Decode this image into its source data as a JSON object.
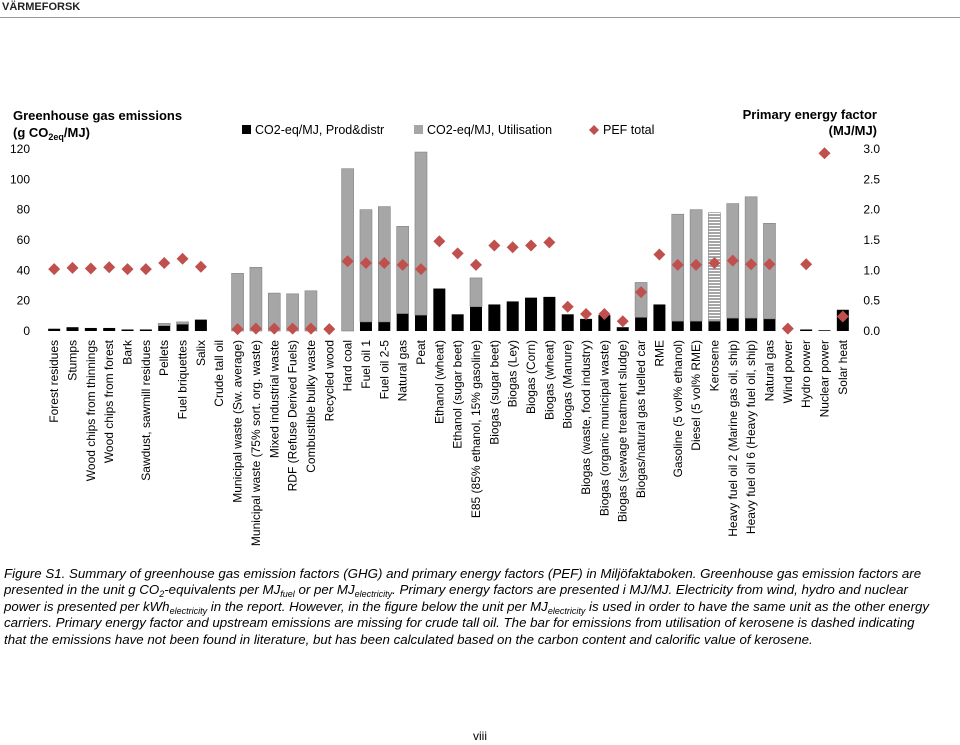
{
  "header": "VÄRMEFORSK",
  "chart_data": {
    "type": "bar",
    "y_label": "Greenhouse gas emissions",
    "y_unit": [
      {
        "t": "(g CO"
      },
      {
        "sub": "2eq"
      },
      {
        "t": "/MJ)"
      }
    ],
    "y2_label": "Primary energy factor",
    "y2_unit": "(MJ/MJ)",
    "categories": [
      "Forest residues",
      "Stumps",
      "Wood chips from thinnings",
      "Wood chips from forest",
      "Bark",
      "Sawdust, sawmill residues",
      "Pellets",
      "Fuel briquettes",
      "Salix",
      "Crude tall oil",
      "Municipal waste (Sw. average)",
      "Municipal waste (75% sort. org. waste)",
      "Mixed industrial waste",
      "RDF (Refuse Derived Fuels)",
      "Combustible bulky waste",
      "Recycled wood",
      "Hard coal",
      "Fuel oil 1",
      "Fuel oil 2-5",
      "Natural gas",
      "Peat",
      "Ethanol (wheat)",
      "Ethanol (sugar beet)",
      "E85 (85% ethanol, 15% gasoline)",
      "Biogas (sugar beet)",
      "Biogas (Ley)",
      "Biogas (Corn)",
      "Biogas (wheat)",
      "Biogas (Manure)",
      "Biogas (waste, food industry)",
      "Biogas (organic municipal waste)",
      "Biogas (sewage treatment sludge)",
      "Biogas/natural gas fuelled car",
      "RME",
      "Gasoline (5 vol% ethanol)",
      "Diesel (5 vol% RME)",
      "Kerosene",
      "Heavy fuel oil 2 (Marine gas oil, ship)",
      "Heavy fuel oil 6 (Heavy fuel oil, ship)",
      "Natural gas",
      "Wind power",
      "Hydro power",
      "Nuclear power",
      "Solar heat"
    ],
    "series": [
      {
        "name": "CO2-eq/MJ, Prod&distr",
        "type": "bar",
        "color": "#000000",
        "values": [
          1.5,
          2.5,
          2,
          2,
          1,
          1,
          3.5,
          4.5,
          7.5,
          0,
          0,
          0,
          0,
          0,
          0,
          0,
          0,
          6,
          6,
          11.5,
          10.5,
          28,
          11,
          16,
          17.5,
          19.5,
          22,
          22.5,
          11,
          8,
          10.5,
          2.5,
          9,
          17.5,
          6.5,
          6.5,
          6.5,
          8.5,
          8.5,
          8,
          0,
          1,
          0.5,
          14
        ]
      },
      {
        "name": "CO2-eq/MJ, Utilisation",
        "type": "bar",
        "color": "#a6a6a6",
        "hatched_index": 36,
        "values": [
          0,
          0,
          0,
          0,
          0,
          0,
          1.5,
          1.5,
          0,
          0,
          38,
          42,
          25,
          24.5,
          26.5,
          0,
          107,
          74,
          76,
          57.5,
          107.5,
          0,
          0,
          19,
          0,
          0,
          0,
          0,
          0,
          0,
          0,
          0,
          23,
          0,
          70.5,
          73.5,
          71.5,
          75.5,
          80,
          63,
          0,
          0,
          0,
          0
        ]
      },
      {
        "name": "PEF total",
        "type": "scatter",
        "marker": "diamond",
        "axis": "y2",
        "color": "#c0504d",
        "values": [
          1.02,
          1.04,
          1.03,
          1.05,
          1.02,
          1.02,
          1.12,
          1.19,
          1.06,
          null,
          0.03,
          0.04,
          0.04,
          0.04,
          0.04,
          0.03,
          1.15,
          1.12,
          1.12,
          1.09,
          1.02,
          1.48,
          1.28,
          1.09,
          1.41,
          1.38,
          1.41,
          1.46,
          0.4,
          0.28,
          0.28,
          0.16,
          0.64,
          1.26,
          1.09,
          1.09,
          1.12,
          1.16,
          1.1,
          1.1,
          0.04,
          1.1,
          2.93,
          0.24
        ]
      }
    ],
    "ylim": [
      0,
      120
    ],
    "yticks": [
      0,
      20,
      40,
      60,
      80,
      100,
      120
    ],
    "y2lim": [
      0,
      3
    ],
    "y2ticks": [
      {
        "value": 0,
        "label": "0.0"
      },
      0.5,
      {
        "value": 1,
        "label": "1.0"
      },
      1.5,
      {
        "value": 2,
        "label": "2.0"
      },
      2.5,
      {
        "value": 3,
        "label": "3.0"
      }
    ],
    "grid": false,
    "legend": "top"
  },
  "caption": [
    {
      "t": "Figure S1. Summary of greenhouse gas emission factors (GHG) and primary energy factors (PEF) in Miljöfaktaboken. Greenhouse gas emission factors are presented in the unit g CO"
    },
    {
      "sub": "2"
    },
    {
      "t": "-equivalents per MJ"
    },
    {
      "sub": "fuel"
    },
    {
      "t": " or per MJ"
    },
    {
      "sub": "electricity"
    },
    {
      "t": ". Primary energy factors are presented i MJ/MJ. Electricity from wind, hydro and nuclear power is presented per kWh"
    },
    {
      "sub": "electricity"
    },
    {
      "t": " in the report. However, in the figure below the unit per MJ"
    },
    {
      "sub": "electricity"
    },
    {
      "t": " is used in order to have the same unit as the other energy carriers. Primary energy factor and upstream emissions are missing for crude tall oil. The bar for emissions from utilisation of kerosene is dashed indicating that the emissions have not been found in literature, but has been calculated based on the carbon content and calorific value of kerosene."
    }
  ],
  "page_number": "viii"
}
